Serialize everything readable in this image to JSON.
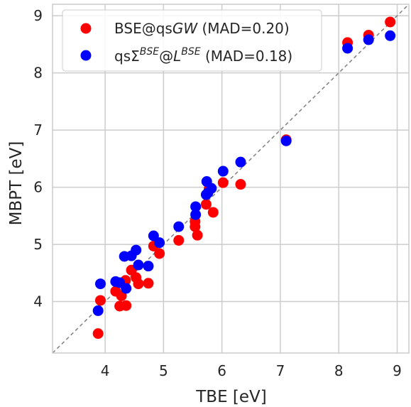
{
  "chart_data": {
    "type": "scatter",
    "xlabel": "TBE [eV]",
    "ylabel": "MBPT [eV]",
    "xlim": [
      3.1,
      9.2
    ],
    "ylim": [
      3.1,
      9.2
    ],
    "xticks": [
      "4",
      "5",
      "6",
      "7",
      "8",
      "9"
    ],
    "yticks": [
      "4",
      "5",
      "6",
      "7",
      "8",
      "9"
    ],
    "grid": true,
    "diagonal_reference_line": true,
    "legend_position": "top-left",
    "series": [
      {
        "name": "BSE@qsGW (MAD=0.20)",
        "legend_parts": [
          "BSE@qs",
          "GW",
          " (MAD=0.20)"
        ],
        "color": "#ff0000",
        "points": [
          [
            3.88,
            3.44
          ],
          [
            3.92,
            4.02
          ],
          [
            4.18,
            4.18
          ],
          [
            4.25,
            3.92
          ],
          [
            4.28,
            4.1
          ],
          [
            4.36,
            3.93
          ],
          [
            4.35,
            4.37
          ],
          [
            4.45,
            4.55
          ],
          [
            4.53,
            4.42
          ],
          [
            4.57,
            4.31
          ],
          [
            4.74,
            4.32
          ],
          [
            4.83,
            4.97
          ],
          [
            4.93,
            4.84
          ],
          [
            5.26,
            5.07
          ],
          [
            5.54,
            5.31
          ],
          [
            5.54,
            5.4
          ],
          [
            5.58,
            5.16
          ],
          [
            5.73,
            5.7
          ],
          [
            5.78,
            5.97
          ],
          [
            5.85,
            5.56
          ],
          [
            6.02,
            6.08
          ],
          [
            6.32,
            6.05
          ],
          [
            7.1,
            6.83
          ],
          [
            8.15,
            8.53
          ],
          [
            8.51,
            8.66
          ],
          [
            8.88,
            8.89
          ]
        ]
      },
      {
        "name": "qsΣ^BSE@L^BSE (MAD=0.18)",
        "legend_parts": [
          "qsΣ",
          "BSE",
          "@",
          "L",
          "BSE",
          " (MAD=0.18)"
        ],
        "color": "#0000ff",
        "points": [
          [
            3.88,
            3.84
          ],
          [
            3.92,
            4.31
          ],
          [
            4.18,
            4.35
          ],
          [
            4.25,
            4.33
          ],
          [
            4.36,
            4.23
          ],
          [
            4.33,
            4.79
          ],
          [
            4.45,
            4.8
          ],
          [
            4.53,
            4.9
          ],
          [
            4.57,
            4.64
          ],
          [
            4.74,
            4.62
          ],
          [
            4.83,
            5.15
          ],
          [
            4.93,
            5.03
          ],
          [
            5.26,
            5.31
          ],
          [
            5.55,
            5.52
          ],
          [
            5.55,
            5.66
          ],
          [
            5.73,
            5.87
          ],
          [
            5.74,
            6.1
          ],
          [
            5.76,
            5.9
          ],
          [
            5.82,
            5.98
          ],
          [
            6.02,
            6.28
          ],
          [
            6.32,
            6.44
          ],
          [
            7.1,
            6.81
          ],
          [
            8.15,
            8.43
          ],
          [
            8.51,
            8.58
          ],
          [
            8.88,
            8.65
          ]
        ]
      }
    ]
  }
}
